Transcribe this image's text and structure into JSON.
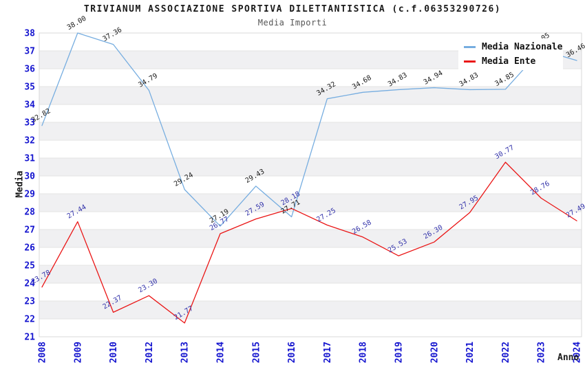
{
  "title": "TRIVIANUM ASSOCIAZIONE SPORTIVA DILETTANTISTICA (c.f.06353290726)",
  "subtitle": "Media Importi",
  "chart_data": {
    "type": "line",
    "x": [
      "2008",
      "2009",
      "2010",
      "2012",
      "2013",
      "2014",
      "2015",
      "2016",
      "2017",
      "2018",
      "2019",
      "2020",
      "2021",
      "2022",
      "2023",
      "2024"
    ],
    "series": [
      {
        "name": "Media Nazionale",
        "color": "#76ade0",
        "label_color": "#1a1a1a",
        "values": [
          32.82,
          38.0,
          37.36,
          34.79,
          29.24,
          27.19,
          29.43,
          27.71,
          34.32,
          34.68,
          34.83,
          34.94,
          34.83,
          34.85,
          37.05,
          36.46
        ]
      },
      {
        "name": "Media Ente",
        "color": "#ea1515",
        "label_color": "#3333aa",
        "values": [
          23.78,
          27.44,
          22.37,
          23.3,
          21.77,
          26.77,
          27.59,
          28.18,
          27.25,
          26.58,
          25.53,
          26.3,
          27.95,
          30.77,
          28.76,
          27.49
        ]
      }
    ],
    "xlabel": "Anno",
    "ylabel": "Media",
    "ylim": [
      21,
      38
    ],
    "ytick_step": 1,
    "grid": true,
    "legend_position": "top-right",
    "band_color": "#f0f0f2",
    "grid_color": "#e3e3e3",
    "plot_border_color": "#d9d9d9",
    "axis_tick_color": "#1414cf"
  }
}
